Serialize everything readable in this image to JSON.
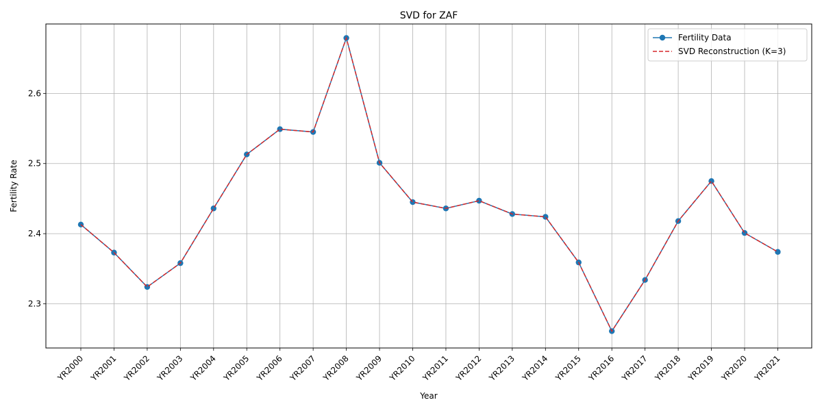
{
  "chart_data": {
    "type": "line",
    "title": "SVD for ZAF",
    "xlabel": "Year",
    "ylabel": "Fertility Rate",
    "categories": [
      "YR2000",
      "YR2001",
      "YR2002",
      "YR2003",
      "YR2004",
      "YR2005",
      "YR2006",
      "YR2007",
      "YR2008",
      "YR2009",
      "YR2010",
      "YR2011",
      "YR2012",
      "YR2013",
      "YR2014",
      "YR2015",
      "YR2016",
      "YR2017",
      "YR2018",
      "YR2019",
      "YR2020",
      "YR2021"
    ],
    "ylim": [
      2.237,
      2.699
    ],
    "yticks": [
      2.3,
      2.4,
      2.5,
      2.6
    ],
    "ytick_labels": [
      "2.3",
      "2.4",
      "2.5",
      "2.6"
    ],
    "grid": true,
    "legend_position": "top-right",
    "series": [
      {
        "name": "Fertility Data",
        "style": "solid-with-circle-markers",
        "color": "#1f77b4",
        "values": [
          2.413,
          2.373,
          2.324,
          2.358,
          2.436,
          2.513,
          2.549,
          2.545,
          2.679,
          2.501,
          2.445,
          2.436,
          2.447,
          2.428,
          2.424,
          2.359,
          2.261,
          2.334,
          2.418,
          2.475,
          2.401,
          2.374
        ]
      },
      {
        "name": "SVD Reconstruction (K=3)",
        "style": "dashed",
        "color": "#d62728",
        "values": [
          2.413,
          2.373,
          2.324,
          2.358,
          2.436,
          2.513,
          2.549,
          2.545,
          2.679,
          2.501,
          2.445,
          2.436,
          2.447,
          2.428,
          2.424,
          2.359,
          2.261,
          2.334,
          2.418,
          2.475,
          2.401,
          2.374
        ]
      }
    ]
  }
}
